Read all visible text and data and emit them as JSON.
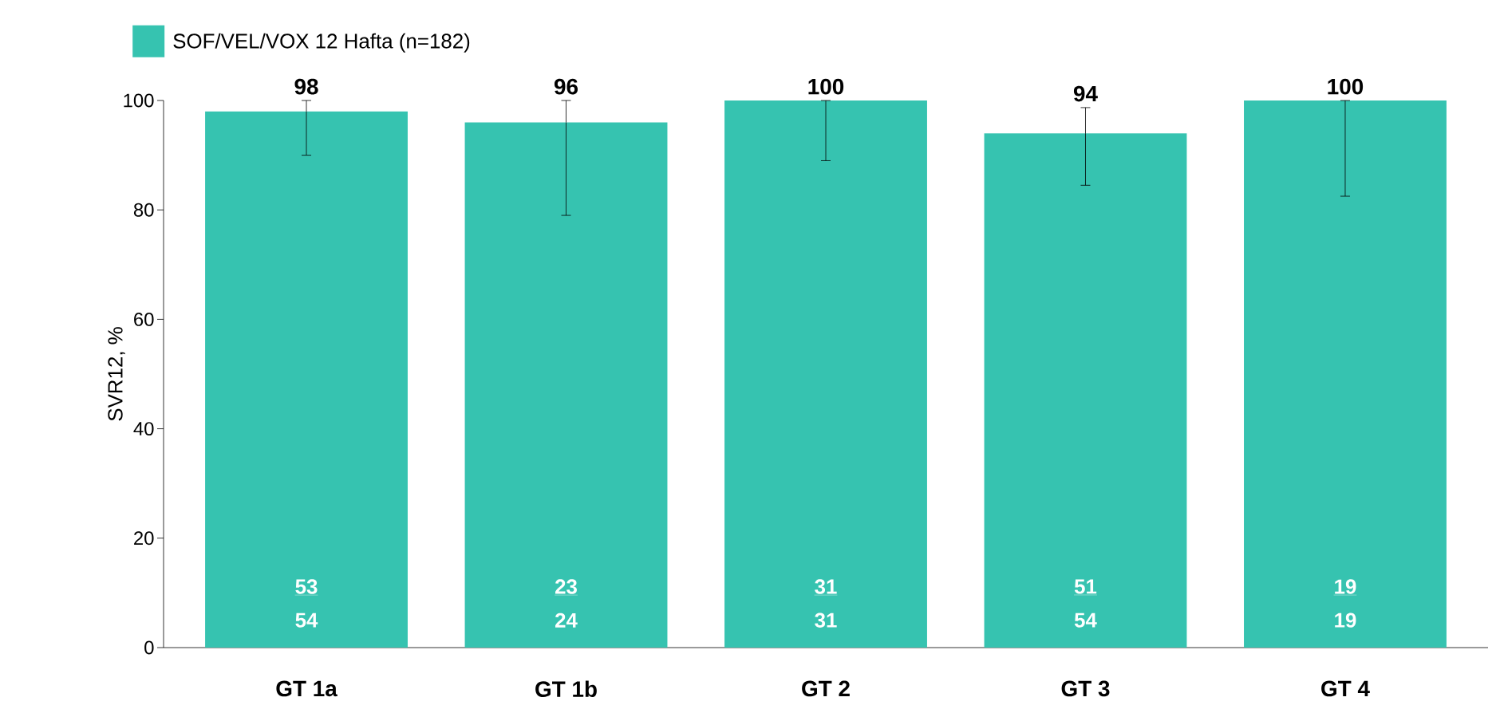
{
  "chart_data": {
    "type": "bar",
    "ylabel": "SVR12, %",
    "categories": [
      "GT 1a",
      "GT 1b",
      "GT 2",
      "GT 3",
      "GT 4"
    ],
    "series": [
      {
        "name": "SOF/VEL/VOX 12 Hafta (n=182)",
        "color": "#36c3b0",
        "values": [
          98,
          96,
          100,
          94,
          100
        ],
        "errors": [
          [
            90,
            100
          ],
          [
            79,
            100
          ],
          [
            89,
            100
          ],
          [
            84.5,
            98.7
          ],
          [
            82.5,
            100
          ]
        ]
      }
    ],
    "data_labels": true,
    "ylim": [
      0,
      100
    ],
    "yticks": [
      0,
      20,
      40,
      60,
      80,
      100
    ],
    "legend": "top left",
    "grid": false,
    "annotations": [
      "53",
      "54",
      "23",
      "24",
      "31",
      "31",
      "51",
      "54",
      "19",
      "19"
    ]
  }
}
